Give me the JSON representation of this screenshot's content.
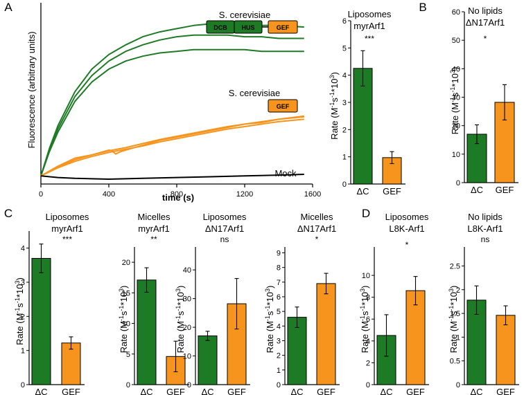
{
  "panel_letters": [
    "A",
    "B",
    "C",
    "D"
  ],
  "colors": {
    "dc": "#1e7b25",
    "gef": "#f7941d",
    "mock": "#000000"
  },
  "kinetics": {
    "ylabel": "Fluorescence (arbitrary units)",
    "xlabel": "time (s)",
    "labels": {
      "top": "S. cerevisiae",
      "middle": "S. cerevisiae",
      "mock": "Mock"
    },
    "domains": [
      "DCB",
      "HUS",
      "GEF"
    ],
    "gef_domain": "GEF"
  },
  "chart_data": [
    {
      "type": "line",
      "panel": "A",
      "xlabel": "time (s)",
      "ylabel": "Fluorescence (arbitrary units)",
      "xlim": [
        0,
        1600
      ],
      "xticks": [
        "0",
        "400",
        "800",
        "1200",
        "1600"
      ],
      "series": [
        {
          "color": "#1e7b25",
          "x": [
            0,
            50,
            100,
            200,
            300,
            400,
            500,
            600,
            700,
            800,
            900,
            1000,
            1100,
            1200,
            1300,
            1400,
            1550
          ],
          "y": [
            0,
            0.17,
            0.31,
            0.52,
            0.66,
            0.75,
            0.81,
            0.86,
            0.89,
            0.91,
            0.93,
            0.94,
            0.94,
            0.93,
            0.93,
            0.93,
            0.92
          ]
        },
        {
          "color": "#1e7b25",
          "x": [
            0,
            50,
            100,
            200,
            300,
            400,
            500,
            600,
            700,
            800,
            900,
            1000,
            1100,
            1200,
            1300,
            1400,
            1550
          ],
          "y": [
            0,
            0.16,
            0.29,
            0.49,
            0.62,
            0.71,
            0.77,
            0.81,
            0.84,
            0.86,
            0.87,
            0.87,
            0.87,
            0.86,
            0.86,
            0.85,
            0.85
          ]
        },
        {
          "color": "#1e7b25",
          "x": [
            0,
            50,
            100,
            200,
            300,
            400,
            500,
            600,
            700,
            800,
            900,
            1000,
            1100,
            1200,
            1300,
            1400,
            1550
          ],
          "y": [
            0,
            0.15,
            0.27,
            0.46,
            0.58,
            0.66,
            0.71,
            0.74,
            0.76,
            0.77,
            0.78,
            0.78,
            0.78,
            0.78,
            0.77,
            0.77,
            0.77
          ]
        },
        {
          "color": "#f7941d",
          "x": [
            0,
            100,
            200,
            300,
            400,
            420,
            440,
            470,
            500,
            600,
            700,
            800,
            900,
            1000,
            1100,
            1200,
            1300,
            1400,
            1550
          ],
          "y": [
            0,
            0.06,
            0.11,
            0.13,
            0.16,
            0.155,
            0.135,
            0.15,
            0.16,
            0.19,
            0.22,
            0.24,
            0.26,
            0.28,
            0.3,
            0.32,
            0.33,
            0.35,
            0.37
          ]
        },
        {
          "color": "#f7941d",
          "x": [
            0,
            100,
            200,
            300,
            400,
            500,
            600,
            700,
            800,
            900,
            1000,
            1100,
            1200,
            1300,
            1400,
            1550
          ],
          "y": [
            0,
            0.055,
            0.1,
            0.13,
            0.155,
            0.175,
            0.2,
            0.225,
            0.245,
            0.265,
            0.285,
            0.305,
            0.32,
            0.335,
            0.35,
            0.365
          ]
        },
        {
          "color": "#f7941d",
          "x": [
            0,
            100,
            200,
            300,
            400,
            500,
            600,
            700,
            800,
            900,
            1000,
            1100,
            1200,
            1300,
            1400,
            1550
          ],
          "y": [
            0,
            0.05,
            0.09,
            0.12,
            0.145,
            0.165,
            0.185,
            0.21,
            0.23,
            0.25,
            0.27,
            0.29,
            0.305,
            0.32,
            0.335,
            0.35
          ]
        },
        {
          "color": "#000000",
          "x": [
            0,
            100,
            200,
            400,
            600,
            800,
            1000,
            1200,
            1400,
            1550
          ],
          "y": [
            0,
            -0.01,
            -0.015,
            -0.02,
            -0.015,
            -0.01,
            -0.005,
            0,
            0.005,
            0.01
          ]
        }
      ]
    },
    {
      "type": "bar",
      "panel": "A",
      "title": [
        "Liposomes",
        "myrArf1"
      ],
      "significance": "***",
      "ylabel": "Rate (M-1s-1*103)",
      "ylim": [
        0,
        6
      ],
      "yticks": [
        0,
        1,
        2,
        3,
        4,
        5,
        6
      ],
      "categories": [
        "ΔC",
        "GEF"
      ],
      "values": [
        4.25,
        0.97
      ],
      "errors": [
        0.65,
        0.22
      ]
    },
    {
      "type": "bar",
      "panel": "B",
      "title": [
        "No lipids",
        "ΔN17Arf1"
      ],
      "significance": "*",
      "ylabel": "Rate (M-1s-1*103)",
      "ylim": [
        0,
        60
      ],
      "yticks": [
        0,
        10,
        20,
        30,
        40,
        50,
        60
      ],
      "categories": [
        "ΔC",
        "GEF"
      ],
      "values": [
        17,
        28.2
      ],
      "errors": [
        3.3,
        6.2
      ]
    },
    {
      "type": "bar",
      "panel": "C",
      "title": [
        "Liposomes",
        "myrArf1"
      ],
      "significance": "***",
      "ylabel": "Rate (M-1s-1*103)",
      "ylim": [
        0,
        4.5
      ],
      "yticks": [
        0,
        1,
        2,
        3,
        4
      ],
      "categories": [
        "ΔC",
        "GEF"
      ],
      "values": [
        3.7,
        1.22
      ],
      "errors": [
        0.42,
        0.18
      ]
    },
    {
      "type": "bar",
      "panel": "C",
      "title": [
        "Micelles",
        "myrArf1"
      ],
      "significance": "**",
      "ylabel": "Rate (M-1s-1*103)",
      "ylim": [
        0,
        22.5
      ],
      "yticks": [
        0,
        5,
        10,
        15,
        20
      ],
      "categories": [
        "ΔC",
        "GEF"
      ],
      "values": [
        17.1,
        4.6
      ],
      "errors": [
        2.0,
        2.5
      ]
    },
    {
      "type": "bar",
      "panel": "C",
      "title": [
        "Liposomes",
        "ΔN17Arf1"
      ],
      "significance": "ns",
      "ylabel": "Rate (M-1s-1*103)",
      "ylim": [
        0,
        48
      ],
      "yticks": [
        0,
        10,
        20,
        30,
        40
      ],
      "categories": [
        "ΔC",
        "GEF"
      ],
      "values": [
        17,
        28.2
      ],
      "errors": [
        1.6,
        8.8
      ]
    },
    {
      "type": "bar",
      "panel": "C",
      "title": [
        "Micelles",
        "ΔN17Arf1"
      ],
      "significance": "*",
      "ylabel": "Rate (M-1s-1*103)",
      "ylim": [
        0,
        9.4
      ],
      "yticks": [
        0,
        1,
        2,
        3,
        4,
        5,
        6,
        7,
        8,
        9
      ],
      "categories": [
        "ΔC",
        "GEF"
      ],
      "values": [
        4.6,
        6.9
      ],
      "errors": [
        0.7,
        0.7
      ]
    },
    {
      "type": "bar",
      "panel": "D",
      "title": [
        "Liposomes",
        "L8K-Arf1"
      ],
      "significance": "*",
      "ylabel": "Rate (M-1s-1*103)",
      "ylim": [
        0,
        12.6
      ],
      "yticks": [
        0,
        2,
        4,
        6,
        8,
        10
      ],
      "categories": [
        "ΔC",
        "GEF"
      ],
      "values": [
        4.5,
        8.6
      ],
      "errors": [
        1.9,
        1.3
      ]
    },
    {
      "type": "bar",
      "panel": "D",
      "title": [
        "No lipids",
        "L8K-Arf1"
      ],
      "significance": "ns",
      "ylabel": "Rate (M-1s-1*103)",
      "ylim": [
        0,
        2.9
      ],
      "yticks": [
        0,
        0.5,
        1,
        1.5,
        2,
        2.5
      ],
      "categories": [
        "ΔC",
        "GEF"
      ],
      "values": [
        1.78,
        1.46
      ],
      "errors": [
        0.3,
        0.2
      ]
    }
  ]
}
